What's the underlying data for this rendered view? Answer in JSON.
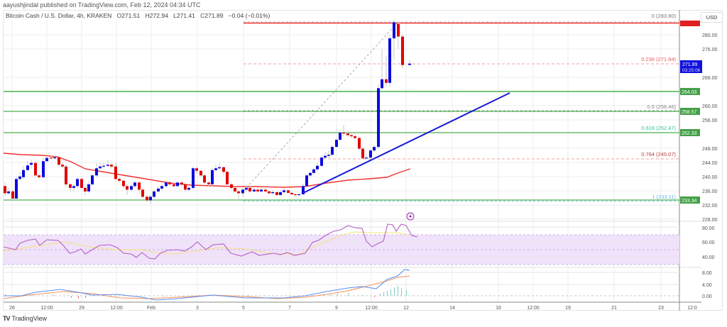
{
  "header": {
    "published": "aayushjindal published on TradingView.com, Feb 12, 2024 04:34 UTC"
  },
  "legend": {
    "symbol": "Bitcoin Cash / U.S. Dollar, 4h, KRAKEN",
    "open": "O271.51",
    "high": "H272.94",
    "low": "L271.41",
    "close": "C271.89",
    "change": "−0.04 (−0.01%)"
  },
  "currency_button": "USD",
  "footer": {
    "logo": "TV",
    "brand": "TradingView"
  },
  "colors": {
    "bull": "#0a0ade",
    "bear": "#e00000",
    "ma": "#f03030",
    "trendline": "#1a1ad8",
    "support": "#4caf50",
    "fib_red": "#ef5350",
    "rsi": "#b45fc6",
    "rsi_ma": "#f5e07a",
    "macd": "#5b8ff0",
    "signal": "#f5945a",
    "current_price_bg": "#1010e0"
  },
  "price_axis": {
    "ticks": [
      "280.00",
      "276.00",
      "268.00",
      "260.00",
      "256.00",
      "248.00",
      "244.00",
      "240.00",
      "236.00",
      "232.00",
      "228.00"
    ],
    "current_price": "271.89",
    "countdown": "03:25:06",
    "level_tags": [
      "264.03",
      "258.57",
      "252.33",
      "233.34"
    ]
  },
  "fib_labels": [
    "0 (283.80)",
    "0.236 (271.84)",
    "0.5 (258.46)",
    "0.618 (252.47)",
    "0.764 (245.07)",
    "1 (233.11)"
  ],
  "rsi_axis": [
    "80.00",
    "60.00",
    "40.00"
  ],
  "macd_axis": [
    "8.00",
    "4.00",
    "0.00"
  ],
  "time_axis": [
    "26",
    "12:00",
    "29",
    "12:00",
    "Feb",
    "3",
    "5",
    "7",
    "9",
    "12:00",
    "12",
    "14",
    "16",
    "12:00",
    "19",
    "21",
    "23",
    "12:0"
  ],
  "chart_data": {
    "type": "candlestick",
    "title": "Bitcoin Cash / U.S. Dollar, 4h, KRAKEN",
    "xlabel": "",
    "ylabel": "USD",
    "ylim": [
      226,
      286
    ],
    "grid": true,
    "ohlc_last": {
      "open": 271.51,
      "high": 272.94,
      "low": 271.41,
      "close": 271.89,
      "change": -0.04,
      "change_pct": -0.01
    },
    "horizontal_levels": [
      {
        "name": "resistance",
        "value": 283.8,
        "color": "#f03030"
      },
      {
        "name": "support_1",
        "value": 264.03,
        "color": "#4caf50"
      },
      {
        "name": "support_2",
        "value": 258.57,
        "color": "#4caf50"
      },
      {
        "name": "support_3",
        "value": 252.33,
        "color": "#4caf50"
      },
      {
        "name": "support_4",
        "value": 233.34,
        "color": "#4caf50"
      }
    ],
    "fibonacci": [
      {
        "level": 0,
        "price": 283.8
      },
      {
        "level": 0.236,
        "price": 271.84
      },
      {
        "level": 0.5,
        "price": 258.46
      },
      {
        "level": 0.618,
        "price": 252.47
      },
      {
        "level": 0.764,
        "price": 245.07
      },
      {
        "level": 1,
        "price": 233.11
      }
    ],
    "trendline": {
      "from": {
        "x": "Feb 7",
        "price": 235.0
      },
      "to": {
        "x": "Feb 16",
        "price": 264.5
      }
    },
    "moving_average_samples": [
      245.5,
      245.0,
      244.6,
      241.5,
      239.5,
      238.0,
      236.5,
      236.2,
      236.3,
      237.0,
      239.0,
      240.0,
      242.5
    ],
    "rsi": {
      "range": [
        20,
        100
      ],
      "band": [
        30,
        70
      ],
      "last": 66
    },
    "macd": {
      "last_macd": 8.5,
      "last_signal": 7.0
    },
    "x_ticks": [
      "26",
      "12:00",
      "29",
      "12:00",
      "Feb",
      "3",
      "5",
      "7",
      "9",
      "12:00",
      "12",
      "14",
      "16",
      "12:00",
      "19",
      "21",
      "23",
      "12:0"
    ]
  }
}
